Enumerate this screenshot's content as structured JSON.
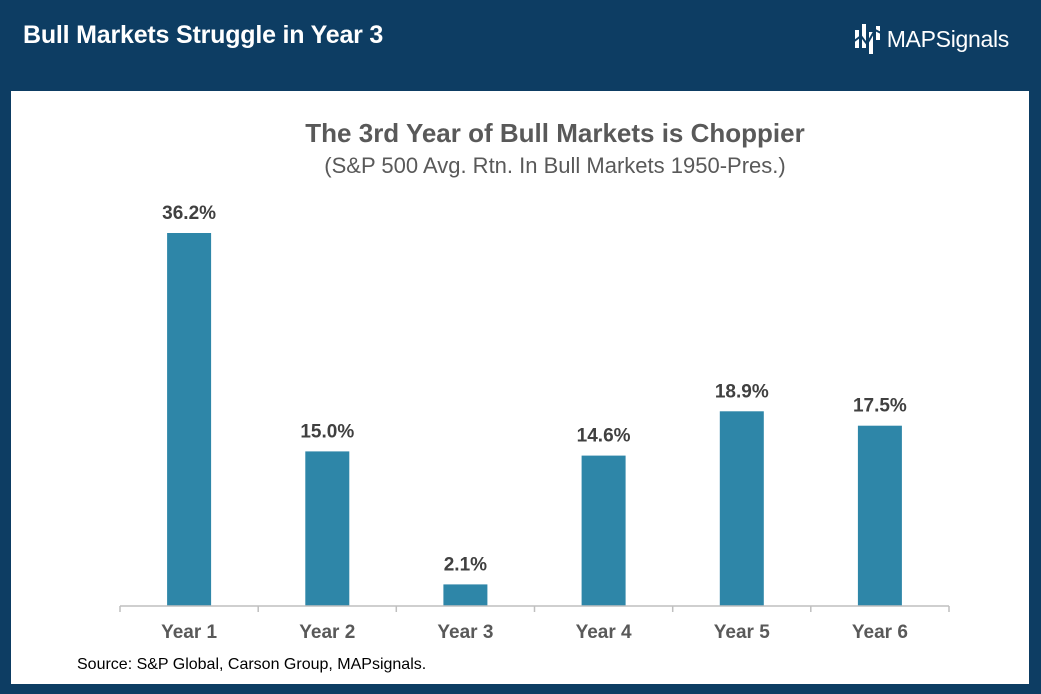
{
  "header": {
    "title": "Bull Markets Struggle in Year 3",
    "logo_text_bold": "MAP",
    "logo_text_light": "Signals",
    "logo_icon": "mapsignals-logo-icon"
  },
  "colors": {
    "header_bg": "#0d3d63",
    "bar": "#2e86a8",
    "text_dark": "#595959"
  },
  "chart_data": {
    "type": "bar",
    "title": "The 3rd Year of Bull Markets is Choppier",
    "subtitle": "(S&P 500 Avg. Rtn. In Bull Markets 1950-Pres.)",
    "categories": [
      "Year 1",
      "Year 2",
      "Year 3",
      "Year 4",
      "Year 5",
      "Year 6"
    ],
    "values": [
      36.2,
      15.0,
      2.1,
      14.6,
      18.9,
      17.5
    ],
    "labels": [
      "36.2%",
      "15.0%",
      "2.1%",
      "14.6%",
      "18.9%",
      "17.5%"
    ],
    "xlabel": "",
    "ylabel": "",
    "ylim": [
      0,
      36.2
    ],
    "grid": false,
    "legend": "none"
  },
  "source": "Source: S&P Global, Carson Group, MAPsignals."
}
